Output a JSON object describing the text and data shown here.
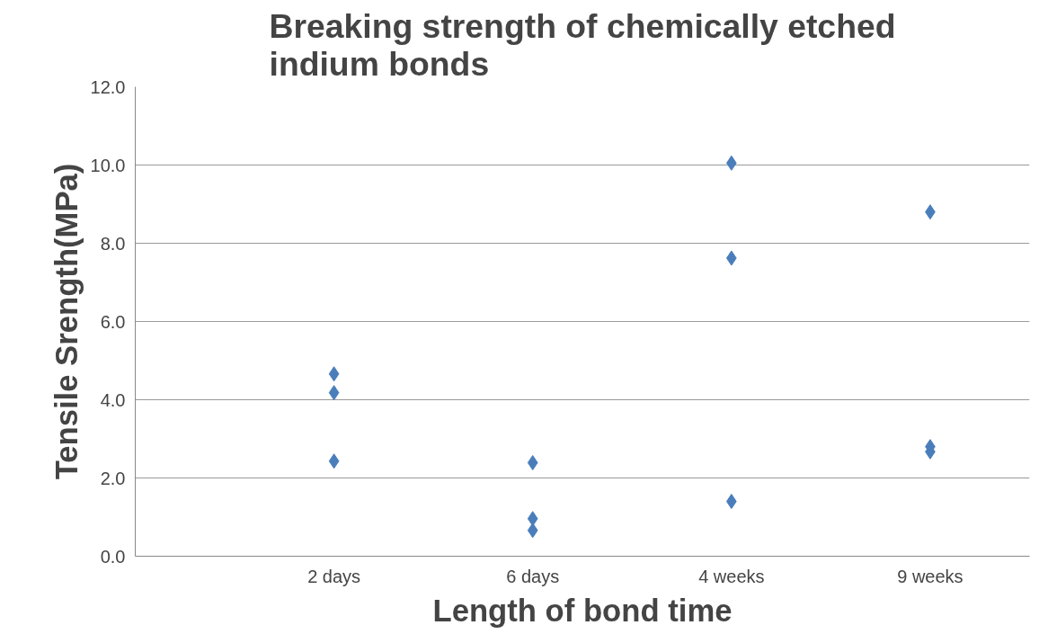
{
  "chart_data": {
    "type": "scatter",
    "title": "Breaking strength of chemically etched\nindium bonds",
    "xlabel": "Length of bond time",
    "ylabel": "Tensile Srength(MPa)",
    "categories": [
      "2 days",
      "6 days",
      "4 weeks",
      "9 weeks"
    ],
    "series": [
      {
        "color": "#4a7ebb",
        "x": [
          "2 days",
          "2 days",
          "2 days",
          "6 days",
          "6 days",
          "6 days",
          "4 weeks",
          "4 weeks",
          "4 weeks",
          "9 weeks",
          "9 weeks",
          "9 weeks"
        ],
        "values": [
          4.66,
          4.18,
          2.43,
          2.39,
          0.96,
          0.66,
          10.05,
          7.62,
          1.4,
          8.8,
          2.8,
          2.67
        ]
      }
    ],
    "ylim": [
      0,
      12
    ],
    "yticks": [
      {
        "value": 0,
        "label": "0.0"
      },
      {
        "value": 2,
        "label": "2.0"
      },
      {
        "value": 4,
        "label": "4.0"
      },
      {
        "value": 6,
        "label": "6.0"
      },
      {
        "value": 8,
        "label": "8.0"
      },
      {
        "value": 10,
        "label": "10.0"
      },
      {
        "value": 12,
        "label": "12.0"
      }
    ],
    "grid": "y",
    "marker": "diamond"
  }
}
